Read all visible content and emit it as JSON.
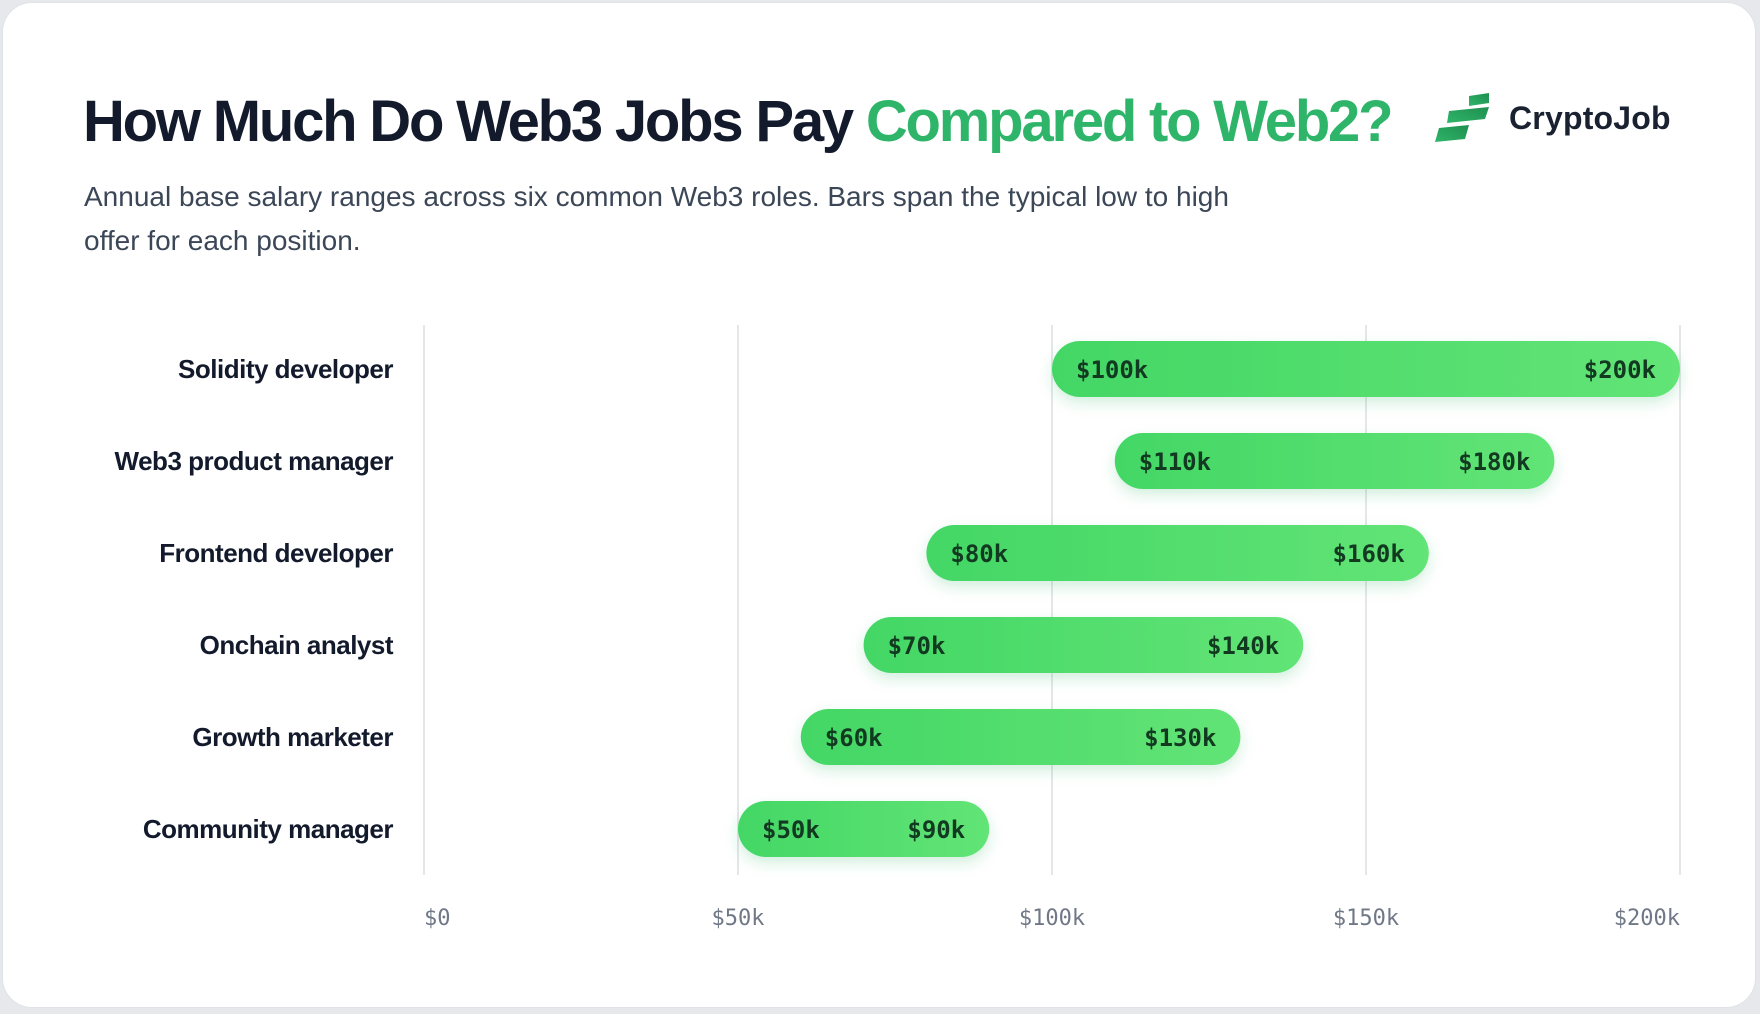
{
  "header": {
    "title_main": "How Much Do Web3 Jobs Pay",
    "title_accent": "Compared to Web2?",
    "subtitle": "Annual base salary ranges across six common Web3 roles. Bars span the typical low to high offer for each position."
  },
  "brand": {
    "name": "CryptoJob",
    "icon": "cryptojob-logo-icon"
  },
  "colors": {
    "title": "#121a2c",
    "accent": "#2fb56a",
    "bar_start": "#43d765",
    "bar_end": "#62e476",
    "bar_label": "#123a21",
    "grid": "#e4e6e9",
    "tick_label": "#707887"
  },
  "chart_data": {
    "type": "bar",
    "orientation": "horizontal",
    "subtype": "range",
    "categories": [
      "Solidity developer",
      "Web3 product manager",
      "Frontend developer",
      "Onchain analyst",
      "Growth marketer",
      "Community manager"
    ],
    "low": [
      100000,
      110000,
      80000,
      70000,
      60000,
      50000
    ],
    "high": [
      200000,
      180000,
      160000,
      140000,
      130000,
      90000
    ],
    "low_labels": [
      "$100k",
      "$110k",
      "$80k",
      "$70k",
      "$60k",
      "$50k"
    ],
    "high_labels": [
      "$200k",
      "$180k",
      "$160k",
      "$140k",
      "$130k",
      "$90k"
    ],
    "xlim": [
      0,
      200000
    ],
    "xticks": [
      0,
      50000,
      100000,
      150000,
      200000
    ],
    "xtick_labels": [
      "$0",
      "$50k",
      "$100k",
      "$150k",
      "$200k"
    ],
    "grid": true,
    "legend": "none"
  }
}
